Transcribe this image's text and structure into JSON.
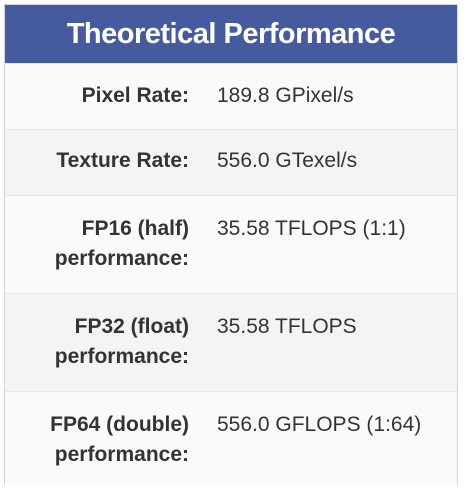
{
  "header": {
    "title": "Theoretical Performance"
  },
  "colors": {
    "header_bg": "#465aa0",
    "header_text": "#ffffff",
    "label_text": "#333333"
  },
  "rows": [
    {
      "label_lines": [
        "Pixel Rate:"
      ],
      "value": "189.8 GPixel/s"
    },
    {
      "label_lines": [
        "Texture Rate:"
      ],
      "value": "556.0 GTexel/s"
    },
    {
      "label_lines": [
        "FP16 (half)",
        "performance:"
      ],
      "value": "35.58 TFLOPS (1:1)"
    },
    {
      "label_lines": [
        "FP32 (float)",
        "performance:"
      ],
      "value": "35.58 TFLOPS"
    },
    {
      "label_lines": [
        "FP64 (double)",
        "performance:"
      ],
      "value": "556.0 GFLOPS (1:64)"
    }
  ]
}
